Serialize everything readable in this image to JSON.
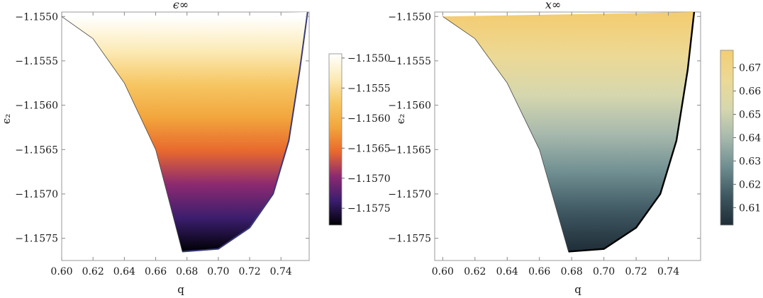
{
  "chart_data": [
    {
      "type": "heatmap",
      "title": "ϵ∞",
      "xlabel": "q",
      "ylabel": "ϵ₂",
      "xlim": [
        0.6,
        0.758
      ],
      "ylim": [
        -1.15775,
        -1.15495
      ],
      "x_ticks": [
        "0.60",
        "0.62",
        "0.64",
        "0.66",
        "0.68",
        "0.70",
        "0.72",
        "0.74"
      ],
      "y_ticks": [
        "-1.1550",
        "-1.1555",
        "-1.1560",
        "-1.1565",
        "-1.1570",
        "-1.1575"
      ],
      "colorbar_ticks": [
        "-1.1550",
        "-1.1555",
        "-1.1560",
        "-1.1565",
        "-1.1570",
        "-1.1575"
      ],
      "colorbar_range": [
        -1.15778,
        -1.15493
      ],
      "colormap": [
        "#000004",
        "#3b1e6e",
        "#8c2a70",
        "#e8692e",
        "#f2a63d",
        "#f6c764",
        "#fcebb8",
        "#ffffff"
      ],
      "boundary": {
        "left_edge": [
          [
            0.6,
            -1.155
          ],
          [
            0.62,
            -1.15525
          ],
          [
            0.64,
            -1.15575
          ],
          [
            0.66,
            -1.1565
          ],
          [
            0.677,
            -1.15765
          ]
        ],
        "bottom_edge": [
          [
            0.677,
            -1.15765
          ],
          [
            0.7,
            -1.15762
          ],
          [
            0.72,
            -1.15738
          ],
          [
            0.735,
            -1.157
          ],
          [
            0.745,
            -1.1564
          ],
          [
            0.752,
            -1.1556
          ],
          [
            0.757,
            -1.15495
          ]
        ],
        "top_value": -1.155
      }
    },
    {
      "type": "heatmap",
      "title": "x∞",
      "xlabel": "q",
      "ylabel": "ϵ₂",
      "xlim": [
        0.595,
        0.76
      ],
      "ylim": [
        -1.15775,
        -1.15495
      ],
      "x_ticks": [
        "0.60",
        "0.62",
        "0.64",
        "0.66",
        "0.68",
        "0.70",
        "0.72",
        "0.74"
      ],
      "y_ticks": [
        "-1.1550",
        "-1.1555",
        "-1.1560",
        "-1.1565",
        "-1.1570",
        "-1.1575"
      ],
      "colorbar_ticks": [
        "0.61",
        "0.62",
        "0.63",
        "0.64",
        "0.65",
        "0.66",
        "0.67"
      ],
      "colorbar_range": [
        0.6025,
        0.6775
      ],
      "colormap": [
        "#1f2d37",
        "#3e5761",
        "#6f8e91",
        "#a7b9ad",
        "#d6d7ae",
        "#ecd995",
        "#f3cd74"
      ],
      "boundary": {
        "left_edge": [
          [
            0.6,
            -1.155
          ],
          [
            0.62,
            -1.15525
          ],
          [
            0.64,
            -1.15575
          ],
          [
            0.66,
            -1.1565
          ],
          [
            0.678,
            -1.15765
          ]
        ],
        "bottom_edge": [
          [
            0.678,
            -1.15765
          ],
          [
            0.7,
            -1.15762
          ],
          [
            0.72,
            -1.15738
          ],
          [
            0.735,
            -1.157
          ],
          [
            0.745,
            -1.1564
          ],
          [
            0.752,
            -1.1556
          ],
          [
            0.756,
            -1.15495
          ]
        ],
        "top_value": -1.155
      }
    }
  ]
}
